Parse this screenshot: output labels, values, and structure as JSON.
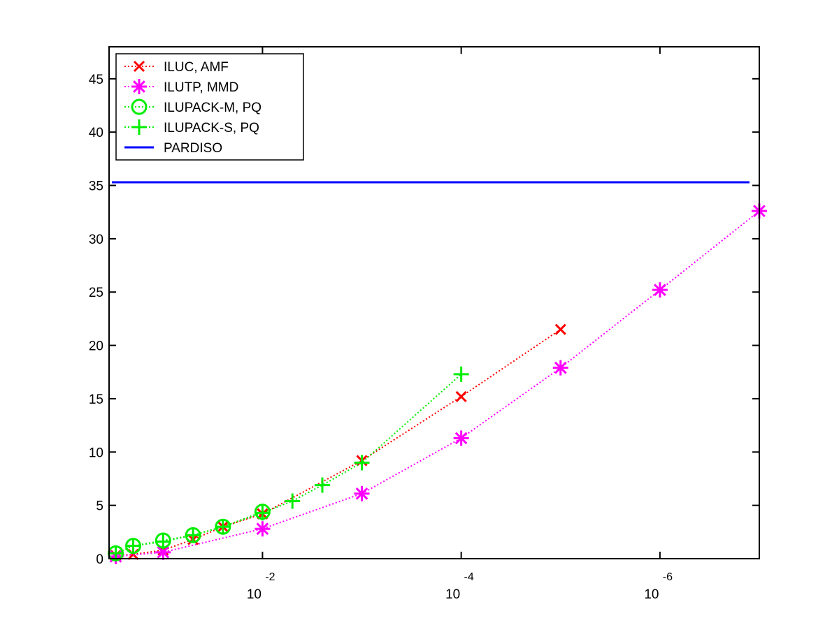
{
  "chart_data": {
    "type": "line",
    "title": "",
    "xlabel": "",
    "ylabel": "",
    "x_scale": "log10-reversed",
    "xlim": [
      0.35,
      1e-07
    ],
    "ylim": [
      0,
      48
    ],
    "y_ticks": [
      0,
      5,
      10,
      15,
      20,
      25,
      30,
      35,
      40,
      45
    ],
    "x_ticks": [
      {
        "value": 0.01,
        "base": "10",
        "exponent": "-2"
      },
      {
        "value": 0.0001,
        "base": "10",
        "exponent": "-4"
      },
      {
        "value": 1e-06,
        "base": "10",
        "exponent": "-6"
      }
    ],
    "grid": false,
    "legend_position": "top-left",
    "series": [
      {
        "name": "ILUC, AMF",
        "color": "#ff0000",
        "line_style": "dotted",
        "marker": "x",
        "points": [
          [
            0.3,
            0.3
          ],
          [
            0.2,
            0.4
          ],
          [
            0.1,
            0.8
          ],
          [
            0.05,
            1.8
          ],
          [
            0.025,
            3.0
          ],
          [
            0.01,
            4.2
          ],
          [
            0.001,
            9.2
          ],
          [
            0.0001,
            15.2
          ],
          [
            1e-05,
            21.5
          ]
        ]
      },
      {
        "name": "ILUTP, MMD",
        "color": "#ff00ff",
        "line_style": "dotted",
        "marker": "asterisk",
        "points": [
          [
            0.3,
            0.2
          ],
          [
            0.1,
            0.6
          ],
          [
            0.01,
            2.8
          ],
          [
            0.001,
            6.1
          ],
          [
            0.0001,
            11.3
          ],
          [
            1e-05,
            17.9
          ],
          [
            1e-06,
            25.2
          ],
          [
            1e-07,
            32.6
          ]
        ]
      },
      {
        "name": "ILUPACK-M, PQ",
        "color": "#00ee00",
        "line_style": "dotted",
        "marker": "circle",
        "points": [
          [
            0.3,
            0.5
          ],
          [
            0.2,
            1.2
          ],
          [
            0.1,
            1.7
          ],
          [
            0.05,
            2.2
          ],
          [
            0.025,
            3.0
          ],
          [
            0.01,
            4.4
          ]
        ]
      },
      {
        "name": "ILUPACK-S, PQ",
        "color": "#00ee00",
        "line_style": "dotted",
        "marker": "plus",
        "points": [
          [
            0.3,
            0.5
          ],
          [
            0.2,
            1.2
          ],
          [
            0.1,
            1.6
          ],
          [
            0.05,
            2.2
          ],
          [
            0.025,
            3.0
          ],
          [
            0.01,
            4.3
          ],
          [
            0.005,
            5.4
          ],
          [
            0.0025,
            6.9
          ],
          [
            0.001,
            9.0
          ],
          [
            0.0001,
            17.3
          ]
        ]
      },
      {
        "name": "PARDISO",
        "color": "#0000ff",
        "line_style": "solid",
        "marker": "none",
        "constant": 35.3
      }
    ]
  }
}
